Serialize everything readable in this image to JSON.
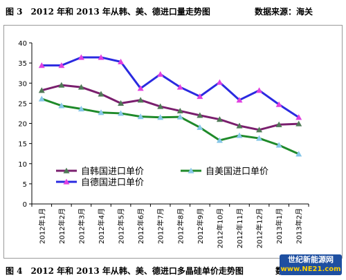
{
  "caption_top": {
    "label": "图 3　2012 年和 2013 年从韩、美、德进口量走势图",
    "source": "数据来源：海关"
  },
  "caption_bottom": {
    "label": "图 4　2012 年和 2013 年从韩、美、德进口多晶硅单价走势图",
    "source": "数据"
  },
  "watermark": {
    "line1": "世纪新能源网",
    "line2": "www.NE21.com"
  },
  "chart_data": {
    "type": "line",
    "title": "",
    "xlabel": "",
    "ylabel": "",
    "ylim": [
      0,
      40
    ],
    "yticks": [
      0,
      5,
      10,
      15,
      20,
      25,
      30,
      35,
      40
    ],
    "grid": false,
    "legend_placement": "lower-left",
    "categories": [
      "2012年1月",
      "2012年2月",
      "2012年3月",
      "2012年4月",
      "2012年5月",
      "2012年6月",
      "2012年7月",
      "2012年8月",
      "2012年9月",
      "2012年10月",
      "2012年11月",
      "2012年12月",
      "2013年1月",
      "2013年2月"
    ],
    "series": [
      {
        "name": "自韩国进口单价",
        "color": "#7a1f6e",
        "marker": "triangle",
        "marker_color": "#4f7a56",
        "values": [
          28.2,
          29.5,
          29.0,
          27.3,
          25.0,
          25.8,
          24.2,
          23.1,
          22.0,
          21.0,
          19.4,
          18.4,
          19.7,
          19.9
        ]
      },
      {
        "name": "自美国进口单价",
        "color": "#1f8a2a",
        "marker": "triangle",
        "marker_color": "#86c7e8",
        "values": [
          26.1,
          24.4,
          23.6,
          22.7,
          22.5,
          21.7,
          21.5,
          21.6,
          19.0,
          15.8,
          17.0,
          16.3,
          14.6,
          12.4
        ]
      },
      {
        "name": "自德国进口单价",
        "color": "#2a2ae0",
        "marker": "triangle",
        "marker_color": "#e040e0",
        "values": [
          34.4,
          34.4,
          36.4,
          36.4,
          35.3,
          28.7,
          32.2,
          29.0,
          26.7,
          30.2,
          25.8,
          28.2,
          24.7,
          21.5
        ]
      }
    ]
  }
}
